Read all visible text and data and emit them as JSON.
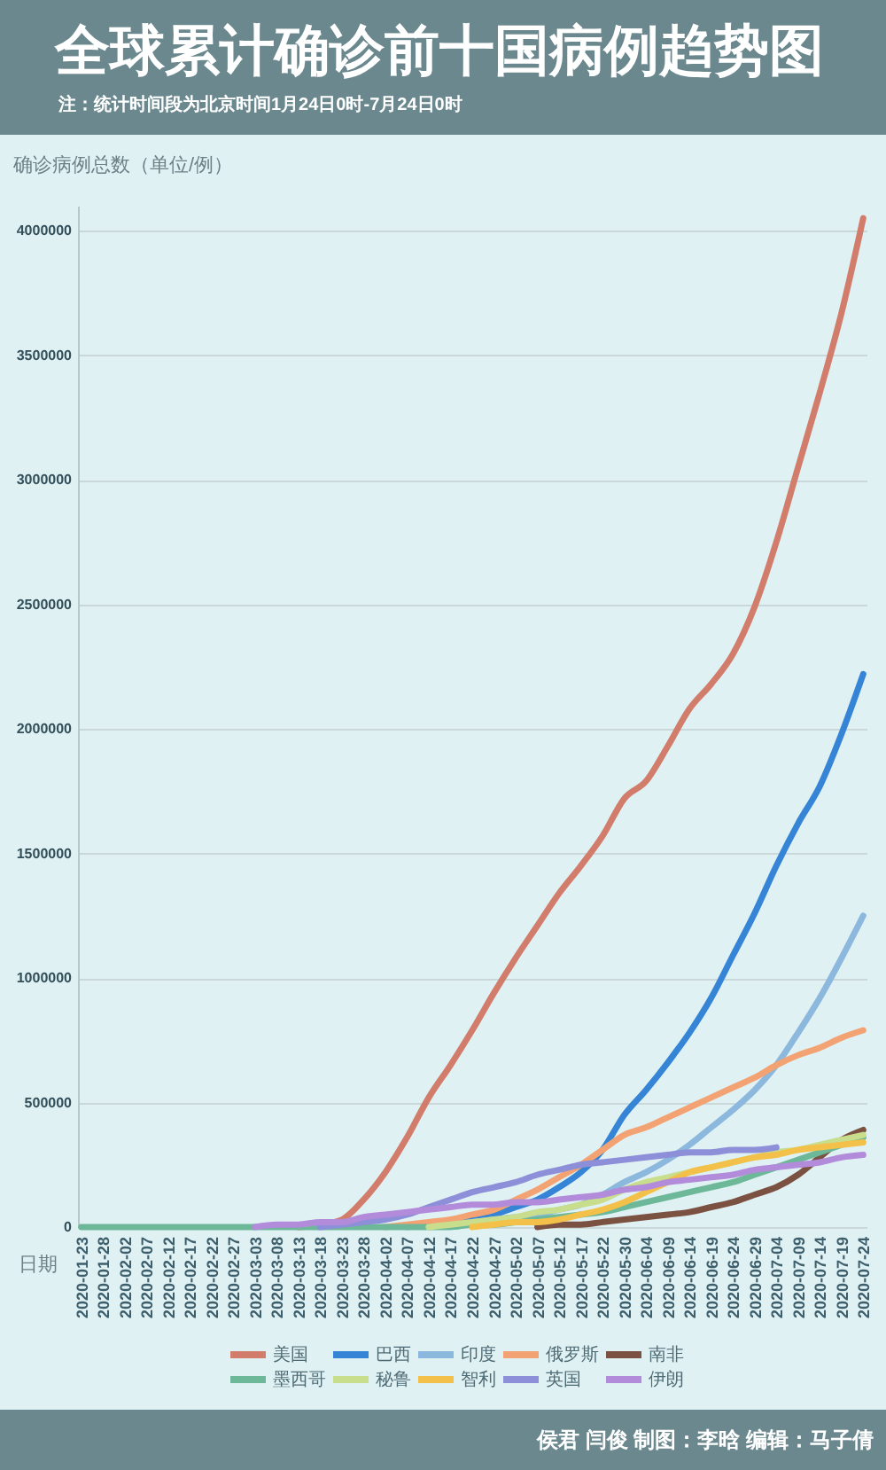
{
  "chart_data": {
    "type": "line",
    "title": "全球累计确诊前十国病例趋势图",
    "subtitle": "注：统计时间段为北京时间1月24日0时-7月24日0时",
    "ylabel": "确诊病例总数（单位/例）",
    "xlabel": "日期",
    "annotations": [
      "侯君 闫俊 制图：李晗 编辑：马子倩"
    ],
    "categories": [
      "2020-01-23",
      "2020-01-28",
      "2020-02-02",
      "2020-02-07",
      "2020-02-12",
      "2020-02-17",
      "2020-02-22",
      "2020-02-27",
      "2020-03-03",
      "2020-03-08",
      "2020-03-13",
      "2020-03-18",
      "2020-03-23",
      "2020-03-28",
      "2020-04-02",
      "2020-04-07",
      "2020-04-12",
      "2020-04-17",
      "2020-04-22",
      "2020-04-27",
      "2020-05-02",
      "2020-05-07",
      "2020-05-12",
      "2020-05-17",
      "2020-05-22",
      "2020-05-30",
      "2020-06-04",
      "2020-06-09",
      "2020-06-14",
      "2020-06-19",
      "2020-06-24",
      "2020-06-29",
      "2020-07-04",
      "2020-07-09",
      "2020-07-14",
      "2020-07-19",
      "2020-07-24"
    ],
    "series": [
      {
        "name": "美国",
        "color": "#d27d6b",
        "values": [
          null,
          null,
          null,
          null,
          null,
          null,
          null,
          null,
          null,
          null,
          0,
          10000,
          30000,
          110000,
          220000,
          360000,
          520000,
          650000,
          790000,
          940000,
          1080000,
          1210000,
          1340000,
          1450000,
          1570000,
          1720000,
          1790000,
          1930000,
          2080000,
          2180000,
          2300000,
          2490000,
          2750000,
          3050000,
          3350000,
          3670000,
          4050000
        ]
      },
      {
        "name": "巴西",
        "color": "#3584d6",
        "values": [
          null,
          null,
          null,
          null,
          null,
          null,
          null,
          null,
          null,
          null,
          null,
          null,
          null,
          null,
          null,
          null,
          null,
          20000,
          30000,
          50000,
          80000,
          110000,
          160000,
          220000,
          310000,
          450000,
          550000,
          660000,
          780000,
          920000,
          1090000,
          1260000,
          1450000,
          1620000,
          1770000,
          1980000,
          2220000
        ]
      },
      {
        "name": "印度",
        "color": "#8bb8dc",
        "values": [
          null,
          null,
          null,
          null,
          null,
          null,
          null,
          null,
          null,
          null,
          null,
          null,
          null,
          null,
          null,
          0,
          10000,
          10000,
          20000,
          30000,
          40000,
          50000,
          70000,
          90000,
          130000,
          180000,
          220000,
          270000,
          330000,
          400000,
          470000,
          550000,
          650000,
          780000,
          920000,
          1080000,
          1250000
        ]
      },
      {
        "name": "俄罗斯",
        "color": "#f3a373",
        "values": [
          null,
          null,
          null,
          null,
          null,
          null,
          null,
          null,
          null,
          null,
          null,
          null,
          null,
          null,
          0,
          10000,
          20000,
          30000,
          50000,
          70000,
          110000,
          150000,
          200000,
          250000,
          310000,
          370000,
          400000,
          440000,
          480000,
          520000,
          560000,
          600000,
          650000,
          690000,
          720000,
          760000,
          790000
        ]
      },
      {
        "name": "南非",
        "color": "#7b5242",
        "values": [
          null,
          null,
          null,
          null,
          null,
          null,
          null,
          null,
          null,
          null,
          null,
          null,
          null,
          null,
          null,
          null,
          null,
          null,
          null,
          null,
          null,
          0,
          10000,
          10000,
          20000,
          30000,
          40000,
          50000,
          60000,
          80000,
          100000,
          130000,
          160000,
          210000,
          280000,
          350000,
          390000
        ]
      },
      {
        "name": "墨西哥",
        "color": "#6cb898",
        "values": [
          0,
          0,
          0,
          0,
          0,
          0,
          0,
          0,
          0,
          0,
          0,
          0,
          0,
          0,
          0,
          0,
          0,
          0,
          10000,
          10000,
          20000,
          30000,
          40000,
          50000,
          60000,
          80000,
          100000,
          120000,
          140000,
          160000,
          180000,
          210000,
          240000,
          270000,
          300000,
          330000,
          360000
        ]
      },
      {
        "name": "秘鲁",
        "color": "#c8de8c",
        "values": [
          null,
          null,
          null,
          null,
          null,
          null,
          null,
          null,
          null,
          null,
          null,
          null,
          null,
          null,
          null,
          null,
          0,
          10000,
          20000,
          30000,
          40000,
          60000,
          70000,
          90000,
          110000,
          150000,
          180000,
          200000,
          220000,
          240000,
          260000,
          280000,
          300000,
          310000,
          330000,
          350000,
          370000
        ]
      },
      {
        "name": "智利",
        "color": "#f3c04a",
        "values": [
          null,
          null,
          null,
          null,
          null,
          null,
          null,
          null,
          null,
          null,
          null,
          null,
          null,
          null,
          null,
          null,
          null,
          null,
          0,
          10000,
          20000,
          20000,
          30000,
          50000,
          70000,
          100000,
          140000,
          180000,
          220000,
          240000,
          260000,
          280000,
          290000,
          310000,
          320000,
          330000,
          340000
        ]
      },
      {
        "name": "英国",
        "color": "#8d8fd8",
        "values": [
          null,
          null,
          null,
          null,
          null,
          null,
          null,
          null,
          null,
          null,
          null,
          0,
          10000,
          20000,
          30000,
          50000,
          80000,
          110000,
          140000,
          160000,
          180000,
          210000,
          230000,
          250000,
          260000,
          270000,
          280000,
          290000,
          300000,
          300000,
          310000,
          310000,
          320000,
          null,
          null,
          null,
          null
        ]
      },
      {
        "name": "伊朗",
        "color": "#b28bdb",
        "values": [
          null,
          null,
          null,
          null,
          null,
          null,
          null,
          null,
          0,
          10000,
          10000,
          20000,
          20000,
          40000,
          50000,
          60000,
          70000,
          80000,
          90000,
          90000,
          100000,
          100000,
          110000,
          120000,
          130000,
          150000,
          160000,
          180000,
          190000,
          200000,
          210000,
          230000,
          240000,
          250000,
          260000,
          280000,
          290000
        ]
      }
    ],
    "ylim": [
      0,
      4100000
    ],
    "yticks": [
      0,
      500000,
      1000000,
      1500000,
      2000000,
      2500000,
      3000000,
      3500000,
      4000000
    ],
    "grid": "y",
    "legend": "bottom"
  }
}
